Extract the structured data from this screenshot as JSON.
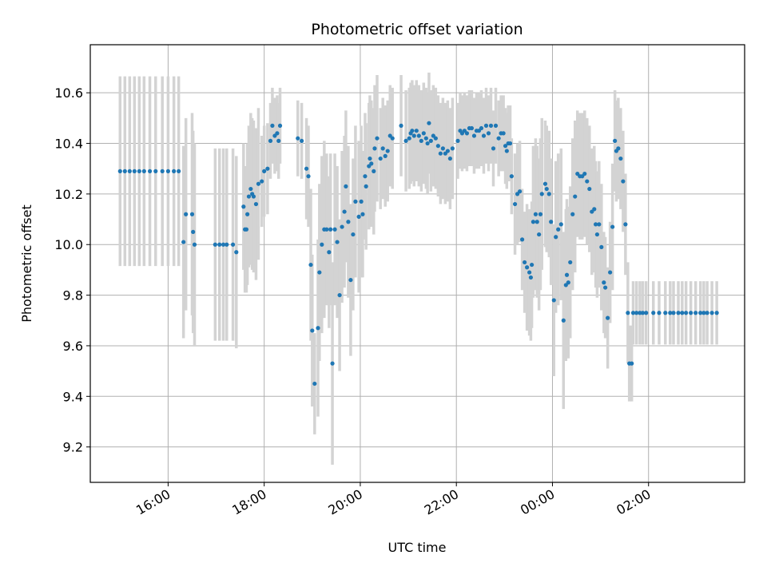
{
  "chart_data": {
    "type": "scatter",
    "title": "Photometric offset variation",
    "xlabel": "UTC time",
    "ylabel": "Photometric offset",
    "x_unit": "hour",
    "x_ticks": [
      16,
      18,
      20,
      22,
      24,
      26
    ],
    "x_tick_labels": [
      "16:00",
      "18:00",
      "20:00",
      "22:00",
      "00:00",
      "02:00"
    ],
    "xlim": [
      14.38,
      28.0
    ],
    "y_ticks": [
      9.2,
      9.4,
      9.6,
      9.8,
      10.0,
      10.2,
      10.4,
      10.6
    ],
    "y_tick_labels": [
      "9.2",
      "9.4",
      "9.6",
      "9.8",
      "10.0",
      "10.2",
      "10.4",
      "10.6"
    ],
    "ylim": [
      9.06,
      10.79
    ],
    "grid": true,
    "colors": {
      "point": "#1f77b4",
      "errorbar": "#d3d3d3",
      "grid": "#b0b0b0"
    },
    "points": [
      [
        15.0,
        10.29,
        0.375
      ],
      [
        15.1,
        10.29,
        0.375
      ],
      [
        15.2,
        10.29,
        0.375
      ],
      [
        15.3,
        10.29,
        0.375
      ],
      [
        15.4,
        10.29,
        0.375
      ],
      [
        15.5,
        10.29,
        0.375
      ],
      [
        15.62,
        10.29,
        0.375
      ],
      [
        15.74,
        10.29,
        0.375
      ],
      [
        15.88,
        10.29,
        0.375
      ],
      [
        16.0,
        10.29,
        0.375
      ],
      [
        16.12,
        10.29,
        0.375
      ],
      [
        16.22,
        10.29,
        0.375
      ],
      [
        16.32,
        10.01,
        0.38
      ],
      [
        16.37,
        10.12,
        0.38
      ],
      [
        16.5,
        10.12,
        0.4
      ],
      [
        16.52,
        10.05,
        0.4
      ],
      [
        16.55,
        10.0,
        0.4
      ],
      [
        16.98,
        10.0,
        0.38
      ],
      [
        17.07,
        10.0,
        0.38
      ],
      [
        17.15,
        10.0,
        0.38
      ],
      [
        17.22,
        10.0,
        0.38
      ],
      [
        17.35,
        10.0,
        0.38
      ],
      [
        17.42,
        9.97,
        0.38
      ],
      [
        17.57,
        10.15,
        0.25
      ],
      [
        17.6,
        10.06,
        0.25
      ],
      [
        17.63,
        10.06,
        0.25
      ],
      [
        17.65,
        10.12,
        0.28
      ],
      [
        17.68,
        10.19,
        0.28
      ],
      [
        17.72,
        10.22,
        0.3
      ],
      [
        17.75,
        10.2,
        0.3
      ],
      [
        17.78,
        10.19,
        0.3
      ],
      [
        17.83,
        10.16,
        0.3
      ],
      [
        17.88,
        10.24,
        0.3
      ],
      [
        17.95,
        10.25,
        0.18
      ],
      [
        18.0,
        10.29,
        0.18
      ],
      [
        18.07,
        10.3,
        0.18
      ],
      [
        18.13,
        10.41,
        0.15
      ],
      [
        18.17,
        10.47,
        0.15
      ],
      [
        18.22,
        10.43,
        0.15
      ],
      [
        18.27,
        10.44,
        0.15
      ],
      [
        18.3,
        10.41,
        0.15
      ],
      [
        18.33,
        10.47,
        0.15
      ],
      [
        18.7,
        10.42,
        0.15
      ],
      [
        18.78,
        10.41,
        0.15
      ],
      [
        18.88,
        10.3,
        0.2
      ],
      [
        18.92,
        10.27,
        0.2
      ],
      [
        18.97,
        9.92,
        0.3
      ],
      [
        19.0,
        9.66,
        0.3
      ],
      [
        19.05,
        9.45,
        0.2
      ],
      [
        19.12,
        9.67,
        0.35
      ],
      [
        19.15,
        9.89,
        0.35
      ],
      [
        19.2,
        10.0,
        0.35
      ],
      [
        19.25,
        10.06,
        0.35
      ],
      [
        19.3,
        10.06,
        0.3
      ],
      [
        19.35,
        9.97,
        0.3
      ],
      [
        19.38,
        10.06,
        0.3
      ],
      [
        19.42,
        9.53,
        0.4
      ],
      [
        19.47,
        10.06,
        0.3
      ],
      [
        19.52,
        10.01,
        0.3
      ],
      [
        19.57,
        9.8,
        0.3
      ],
      [
        19.62,
        10.07,
        0.3
      ],
      [
        19.67,
        10.13,
        0.3
      ],
      [
        19.7,
        10.23,
        0.3
      ],
      [
        19.75,
        10.09,
        0.3
      ],
      [
        19.8,
        9.86,
        0.3
      ],
      [
        19.85,
        10.04,
        0.3
      ],
      [
        19.9,
        10.17,
        0.3
      ],
      [
        19.97,
        10.11,
        0.3
      ],
      [
        20.02,
        10.17,
        0.3
      ],
      [
        20.05,
        10.12,
        0.25
      ],
      [
        20.1,
        10.27,
        0.25
      ],
      [
        20.12,
        10.23,
        0.25
      ],
      [
        20.18,
        10.31,
        0.25
      ],
      [
        20.2,
        10.34,
        0.25
      ],
      [
        20.23,
        10.32,
        0.25
      ],
      [
        20.28,
        10.29,
        0.25
      ],
      [
        20.3,
        10.38,
        0.25
      ],
      [
        20.35,
        10.42,
        0.25
      ],
      [
        20.42,
        10.34,
        0.2
      ],
      [
        20.47,
        10.38,
        0.2
      ],
      [
        20.52,
        10.35,
        0.2
      ],
      [
        20.57,
        10.37,
        0.2
      ],
      [
        20.62,
        10.43,
        0.2
      ],
      [
        20.67,
        10.42,
        0.2
      ],
      [
        20.85,
        10.47,
        0.2
      ],
      [
        20.95,
        10.41,
        0.2
      ],
      [
        21.02,
        10.42,
        0.2
      ],
      [
        21.05,
        10.44,
        0.2
      ],
      [
        21.08,
        10.45,
        0.2
      ],
      [
        21.12,
        10.43,
        0.2
      ],
      [
        21.17,
        10.45,
        0.2
      ],
      [
        21.22,
        10.43,
        0.2
      ],
      [
        21.27,
        10.41,
        0.2
      ],
      [
        21.32,
        10.44,
        0.2
      ],
      [
        21.37,
        10.42,
        0.2
      ],
      [
        21.4,
        10.4,
        0.2
      ],
      [
        21.43,
        10.48,
        0.2
      ],
      [
        21.47,
        10.41,
        0.2
      ],
      [
        21.52,
        10.43,
        0.2
      ],
      [
        21.57,
        10.42,
        0.2
      ],
      [
        21.62,
        10.39,
        0.2
      ],
      [
        21.67,
        10.36,
        0.2
      ],
      [
        21.72,
        10.38,
        0.2
      ],
      [
        21.77,
        10.36,
        0.2
      ],
      [
        21.82,
        10.37,
        0.2
      ],
      [
        21.87,
        10.34,
        0.2
      ],
      [
        21.92,
        10.38,
        0.2
      ],
      [
        22.03,
        10.41,
        0.15
      ],
      [
        22.08,
        10.45,
        0.15
      ],
      [
        22.12,
        10.44,
        0.15
      ],
      [
        22.17,
        10.45,
        0.15
      ],
      [
        22.22,
        10.44,
        0.15
      ],
      [
        22.27,
        10.46,
        0.15
      ],
      [
        22.32,
        10.46,
        0.15
      ],
      [
        22.37,
        10.43,
        0.15
      ],
      [
        22.42,
        10.45,
        0.15
      ],
      [
        22.47,
        10.45,
        0.15
      ],
      [
        22.52,
        10.46,
        0.15
      ],
      [
        22.57,
        10.43,
        0.15
      ],
      [
        22.62,
        10.47,
        0.15
      ],
      [
        22.67,
        10.44,
        0.15
      ],
      [
        22.72,
        10.47,
        0.15
      ],
      [
        22.77,
        10.38,
        0.15
      ],
      [
        22.82,
        10.47,
        0.15
      ],
      [
        22.88,
        10.42,
        0.15
      ],
      [
        22.93,
        10.44,
        0.15
      ],
      [
        22.98,
        10.44,
        0.15
      ],
      [
        23.02,
        10.39,
        0.15
      ],
      [
        23.05,
        10.37,
        0.15
      ],
      [
        23.08,
        10.4,
        0.15
      ],
      [
        23.12,
        10.4,
        0.15
      ],
      [
        23.15,
        10.27,
        0.15
      ],
      [
        23.22,
        10.16,
        0.2
      ],
      [
        23.27,
        10.2,
        0.2
      ],
      [
        23.32,
        10.21,
        0.2
      ],
      [
        23.37,
        10.02,
        0.2
      ],
      [
        23.42,
        9.93,
        0.2
      ],
      [
        23.47,
        9.91,
        0.25
      ],
      [
        23.52,
        9.89,
        0.25
      ],
      [
        23.55,
        9.87,
        0.25
      ],
      [
        23.57,
        9.92,
        0.25
      ],
      [
        23.6,
        10.09,
        0.3
      ],
      [
        23.65,
        10.12,
        0.3
      ],
      [
        23.68,
        10.09,
        0.3
      ],
      [
        23.72,
        10.04,
        0.3
      ],
      [
        23.75,
        10.12,
        0.3
      ],
      [
        23.78,
        10.2,
        0.3
      ],
      [
        23.85,
        10.24,
        0.25
      ],
      [
        23.88,
        10.22,
        0.25
      ],
      [
        23.93,
        10.2,
        0.25
      ],
      [
        23.97,
        10.09,
        0.25
      ],
      [
        24.03,
        9.78,
        0.3
      ],
      [
        24.07,
        10.03,
        0.3
      ],
      [
        24.12,
        10.06,
        0.3
      ],
      [
        24.18,
        10.08,
        0.3
      ],
      [
        24.23,
        9.7,
        0.35
      ],
      [
        24.28,
        9.84,
        0.3
      ],
      [
        24.3,
        9.88,
        0.3
      ],
      [
        24.33,
        9.85,
        0.3
      ],
      [
        24.37,
        9.93,
        0.3
      ],
      [
        24.42,
        10.12,
        0.3
      ],
      [
        24.47,
        10.19,
        0.3
      ],
      [
        24.52,
        10.28,
        0.25
      ],
      [
        24.57,
        10.27,
        0.25
      ],
      [
        24.62,
        10.27,
        0.25
      ],
      [
        24.67,
        10.28,
        0.25
      ],
      [
        24.72,
        10.25,
        0.25
      ],
      [
        24.77,
        10.22,
        0.25
      ],
      [
        24.82,
        10.13,
        0.25
      ],
      [
        24.87,
        10.14,
        0.25
      ],
      [
        24.9,
        10.08,
        0.25
      ],
      [
        24.93,
        10.04,
        0.25
      ],
      [
        24.97,
        10.08,
        0.25
      ],
      [
        25.02,
        9.99,
        0.25
      ],
      [
        25.07,
        9.85,
        0.2
      ],
      [
        25.1,
        9.83,
        0.2
      ],
      [
        25.15,
        9.71,
        0.2
      ],
      [
        25.2,
        9.89,
        0.2
      ],
      [
        25.25,
        10.07,
        0.25
      ],
      [
        25.3,
        10.41,
        0.2
      ],
      [
        25.33,
        10.37,
        0.2
      ],
      [
        25.37,
        10.38,
        0.2
      ],
      [
        25.42,
        10.34,
        0.2
      ],
      [
        25.47,
        10.25,
        0.2
      ],
      [
        25.52,
        10.08,
        0.2
      ],
      [
        25.57,
        9.73,
        0.2
      ],
      [
        25.6,
        9.53,
        0.15
      ],
      [
        25.65,
        9.53,
        0.15
      ],
      [
        25.68,
        9.73,
        0.125
      ],
      [
        25.75,
        9.73,
        0.125
      ],
      [
        25.82,
        9.73,
        0.125
      ],
      [
        25.88,
        9.73,
        0.125
      ],
      [
        25.95,
        9.73,
        0.125
      ],
      [
        26.1,
        9.73,
        0.125
      ],
      [
        26.22,
        9.73,
        0.125
      ],
      [
        26.35,
        9.73,
        0.125
      ],
      [
        26.45,
        9.73,
        0.125
      ],
      [
        26.52,
        9.73,
        0.125
      ],
      [
        26.62,
        9.73,
        0.125
      ],
      [
        26.7,
        9.73,
        0.125
      ],
      [
        26.78,
        9.73,
        0.125
      ],
      [
        26.88,
        9.73,
        0.125
      ],
      [
        26.98,
        9.73,
        0.125
      ],
      [
        27.08,
        9.73,
        0.125
      ],
      [
        27.15,
        9.73,
        0.125
      ],
      [
        27.22,
        9.73,
        0.125
      ],
      [
        27.32,
        9.73,
        0.125
      ],
      [
        27.42,
        9.73,
        0.125
      ]
    ]
  }
}
